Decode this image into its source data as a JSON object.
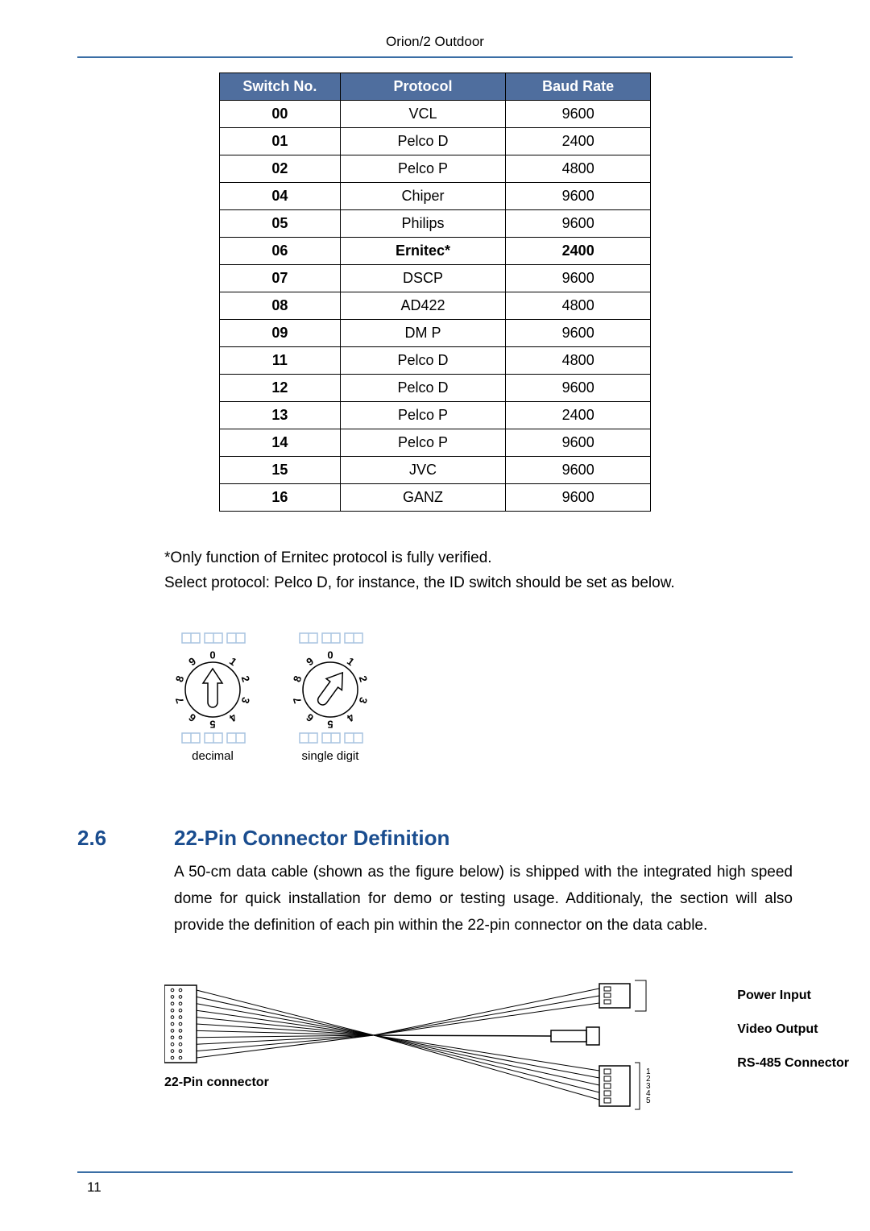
{
  "header": {
    "title": "Orion/2 Outdoor"
  },
  "table": {
    "columns": [
      "Switch No.",
      "Protocol",
      "Baud Rate"
    ],
    "header_bg": "#4f6e9e",
    "header_fg": "#ffffff",
    "border_color": "#000000",
    "rows": [
      {
        "switch": "00",
        "protocol": "VCL",
        "baud": "9600",
        "bold": false
      },
      {
        "switch": "01",
        "protocol": "Pelco D",
        "baud": "2400",
        "bold": false
      },
      {
        "switch": "02",
        "protocol": "Pelco P",
        "baud": "4800",
        "bold": false
      },
      {
        "switch": "04",
        "protocol": "Chiper",
        "baud": "9600",
        "bold": false
      },
      {
        "switch": "05",
        "protocol": "Philips",
        "baud": "9600",
        "bold": false
      },
      {
        "switch": "06",
        "protocol": "Ernitec*",
        "baud": "2400",
        "bold": true
      },
      {
        "switch": "07",
        "protocol": "DSCP",
        "baud": "9600",
        "bold": false
      },
      {
        "switch": "08",
        "protocol": "AD422",
        "baud": "4800",
        "bold": false
      },
      {
        "switch": "09",
        "protocol": "DM P",
        "baud": "9600",
        "bold": false
      },
      {
        "switch": "11",
        "protocol": "Pelco D",
        "baud": "4800",
        "bold": false
      },
      {
        "switch": "12",
        "protocol": "Pelco D",
        "baud": "9600",
        "bold": false
      },
      {
        "switch": "13",
        "protocol": "Pelco P",
        "baud": "2400",
        "bold": false
      },
      {
        "switch": "14",
        "protocol": "Pelco P",
        "baud": "9600",
        "bold": false
      },
      {
        "switch": "15",
        "protocol": "JVC",
        "baud": "9600",
        "bold": false
      },
      {
        "switch": "16",
        "protocol": "GANZ",
        "baud": "9600",
        "bold": false
      }
    ]
  },
  "note": {
    "line1": "*Only function of Ernitec protocol is fully verified.",
    "line2": "Select protocol: Pelco D, for instance, the ID switch should be set as below."
  },
  "dials": {
    "digits": [
      "0",
      "1",
      "2",
      "3",
      "4",
      "5",
      "6",
      "7",
      "8",
      "9"
    ],
    "left": {
      "label": "decimal",
      "arrow_angle_deg": 0
    },
    "right": {
      "label": "single digit",
      "arrow_angle_deg": 36
    },
    "box_stroke": "#a9c4e0",
    "dial_stroke": "#000000"
  },
  "section": {
    "number": "2.6",
    "title": "22-Pin Connector Definition",
    "title_color": "#1a4d8f",
    "body": "A 50-cm data cable (shown as the figure below) is shipped with the integrated high speed dome for quick installation for demo or testing usage. Additionaly, the section will also provide the definition of each pin within the 22-pin connector on the data cable."
  },
  "cable": {
    "left_label": "22-Pin connector",
    "right_labels": [
      "Power Input",
      "Video Output",
      "RS-485 Connector"
    ],
    "pin_numbers": [
      "1",
      "2",
      "3",
      "4",
      "5"
    ],
    "stroke": "#000000"
  },
  "footer": {
    "page": "11",
    "rule_color": "#3a6ea5"
  }
}
